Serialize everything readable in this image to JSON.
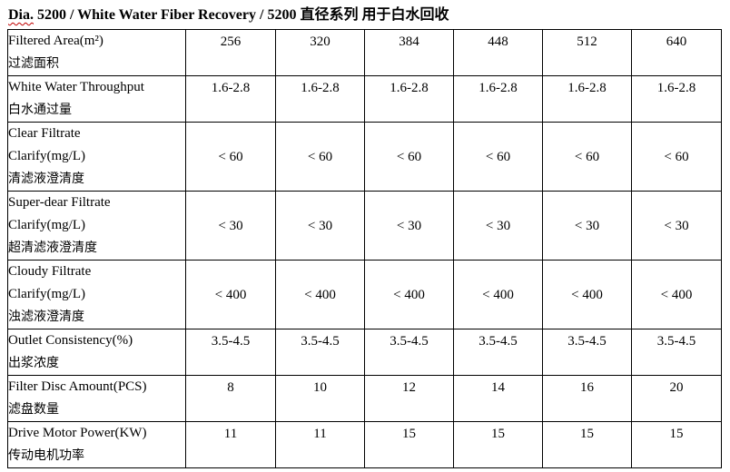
{
  "title": {
    "prefix": "Dia.",
    "rest": " 5200 / White Water Fiber Recovery / 5200 直径系列 用于白水回收"
  },
  "rows": [
    {
      "name": "filtered-area",
      "lines": [
        "Filtered Area(m²)",
        "过滤面积"
      ],
      "valign": "top",
      "values": [
        "256",
        "320",
        "384",
        "448",
        "512",
        "640"
      ]
    },
    {
      "name": "white-water-throughput",
      "lines": [
        "White Water Throughput",
        "白水通过量"
      ],
      "valign": "top",
      "values": [
        "1.6-2.8",
        "1.6-2.8",
        "1.6-2.8",
        "1.6-2.8",
        "1.6-2.8",
        "1.6-2.8"
      ]
    },
    {
      "name": "clear-filtrate",
      "lines": [
        "Clear Filtrate",
        "Clarify(mg/L)",
        "清滤液澄清度"
      ],
      "valign": "mid",
      "values": [
        "< 60",
        "< 60",
        "< 60",
        "< 60",
        "< 60",
        "< 60"
      ]
    },
    {
      "name": "super-clear-filtrate",
      "lines": [
        "Super-dear Filtrate",
        "Clarify(mg/L)",
        "超清滤液澄清度"
      ],
      "valign": "mid",
      "values": [
        "< 30",
        "< 30",
        "< 30",
        "< 30",
        "< 30",
        "< 30"
      ]
    },
    {
      "name": "cloudy-filtrate",
      "lines": [
        "Cloudy Filtrate",
        "Clarify(mg/L)",
        "浊滤液澄清度"
      ],
      "valign": "mid",
      "values": [
        "< 400",
        "< 400",
        "< 400",
        "< 400",
        "< 400",
        "< 400"
      ]
    },
    {
      "name": "outlet-consistency",
      "lines": [
        "Outlet Consistency(%)",
        "出浆浓度"
      ],
      "valign": "top",
      "values": [
        "3.5-4.5",
        "3.5-4.5",
        "3.5-4.5",
        "3.5-4.5",
        "3.5-4.5",
        "3.5-4.5"
      ]
    },
    {
      "name": "filter-disc-amount",
      "lines": [
        "Filter Disc Amount(PCS)",
        "滤盘数量"
      ],
      "valign": "top",
      "values": [
        "8",
        "10",
        "12",
        "14",
        "16",
        "20"
      ]
    },
    {
      "name": "drive-motor-power",
      "lines": [
        "Drive Motor Power(KW)",
        "传动电机功率"
      ],
      "valign": "top",
      "values": [
        "11",
        "11",
        "15",
        "15",
        "15",
        "15"
      ]
    }
  ]
}
